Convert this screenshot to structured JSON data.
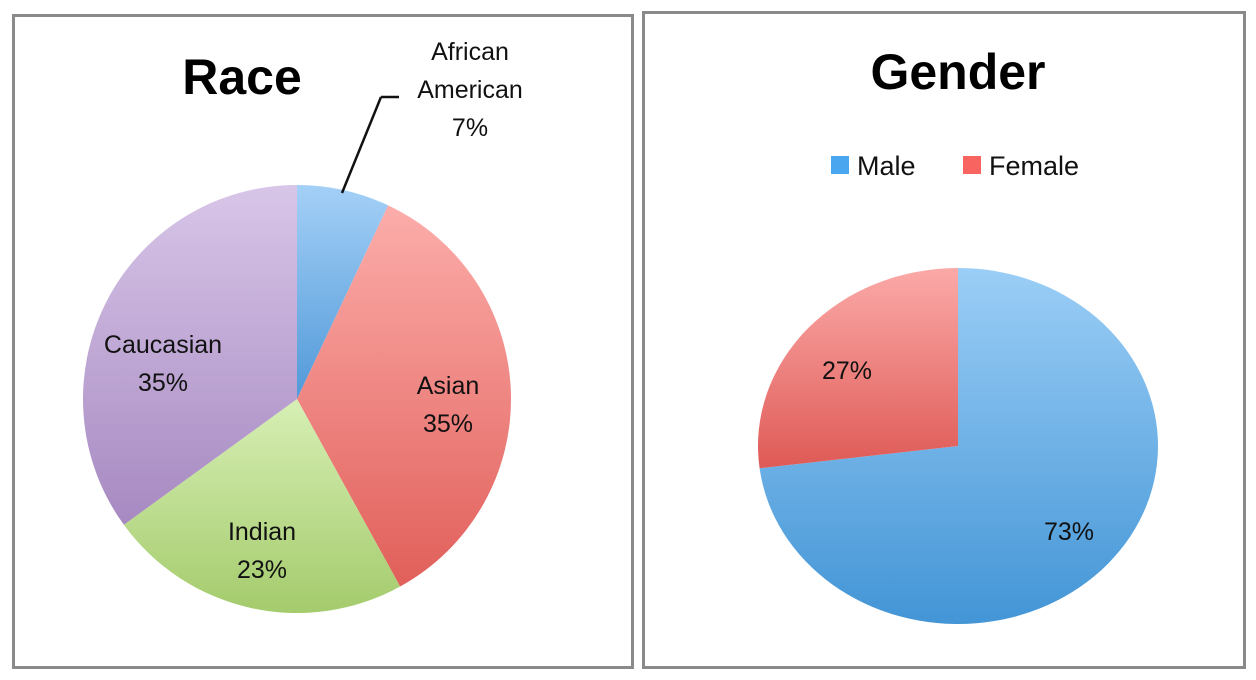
{
  "chart_data": [
    {
      "type": "pie",
      "title": "Race",
      "categories": [
        "African American",
        "Asian",
        "Indian",
        "Caucasian"
      ],
      "values": [
        7,
        35,
        23,
        35
      ],
      "labels": [
        {
          "lines": [
            "African",
            "American",
            "7%"
          ]
        },
        {
          "lines": [
            "Asian",
            "35%"
          ]
        },
        {
          "lines": [
            "Indian",
            "23%"
          ]
        },
        {
          "lines": [
            "Caucasian",
            "35%"
          ]
        }
      ],
      "colors": [
        "#5aaaf0",
        "#fa6a64",
        "#b6e278",
        "#b898d6"
      ],
      "legend": "none"
    },
    {
      "type": "pie",
      "title": "Gender",
      "categories": [
        "Male",
        "Female"
      ],
      "values": [
        73,
        27
      ],
      "labels": [
        {
          "lines": [
            "73%"
          ]
        },
        {
          "lines": [
            "27%"
          ]
        }
      ],
      "colors": [
        "#4aa6ee",
        "#f86460"
      ],
      "legend": "top"
    }
  ]
}
